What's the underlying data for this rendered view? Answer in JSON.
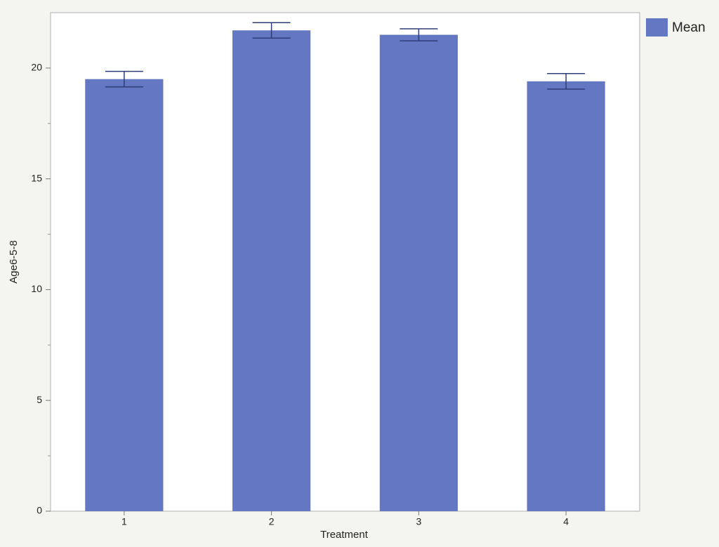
{
  "chart_data": {
    "type": "bar",
    "x_label": "Treatment",
    "y_label": "Age6-5-8",
    "categories": [
      "1",
      "2",
      "3",
      "4"
    ],
    "series": [
      {
        "name": "Mean",
        "color": "#6377c3",
        "values": [
          19.5,
          21.7,
          21.5,
          19.4
        ],
        "errors": [
          0.35,
          0.35,
          0.27,
          0.35
        ]
      }
    ],
    "error_color": "#2e3d78",
    "ylim": [
      0,
      22.5
    ],
    "yticks": [
      0,
      5,
      10,
      15,
      20
    ],
    "yminorticks": [
      2.5,
      7.5,
      12.5,
      17.5
    ],
    "legend": "right"
  }
}
